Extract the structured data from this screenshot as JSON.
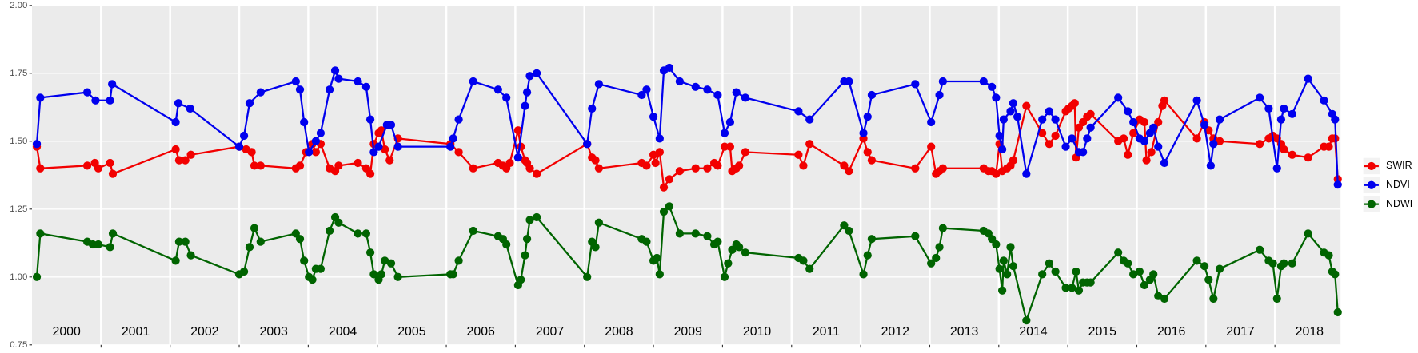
{
  "chart_data": {
    "type": "line",
    "xlim": [
      2000,
      2018.95
    ],
    "ylim": [
      0.75,
      2.0
    ],
    "yticks": [
      {
        "value": 0.75,
        "label": "0.75"
      },
      {
        "value": 1.0,
        "label": "1.00"
      },
      {
        "value": 1.25,
        "label": "1.25"
      },
      {
        "value": 1.5,
        "label": "1.50"
      },
      {
        "value": 1.75,
        "label": "1.75"
      },
      {
        "value": 2.0,
        "label": "2.00"
      }
    ],
    "xticks": [
      {
        "value": 2000.5,
        "label": "2000"
      },
      {
        "value": 2001.5,
        "label": "2001"
      },
      {
        "value": 2002.5,
        "label": "2002"
      },
      {
        "value": 2003.5,
        "label": "2003"
      },
      {
        "value": 2004.5,
        "label": "2004"
      },
      {
        "value": 2005.5,
        "label": "2005"
      },
      {
        "value": 2006.5,
        "label": "2006"
      },
      {
        "value": 2007.5,
        "label": "2007"
      },
      {
        "value": 2008.5,
        "label": "2008"
      },
      {
        "value": 2009.5,
        "label": "2009"
      },
      {
        "value": 2010.5,
        "label": "2010"
      },
      {
        "value": 2011.5,
        "label": "2011"
      },
      {
        "value": 2012.5,
        "label": "2012"
      },
      {
        "value": 2013.5,
        "label": "2013"
      },
      {
        "value": 2014.5,
        "label": "2014"
      },
      {
        "value": 2015.5,
        "label": "2015"
      },
      {
        "value": 2016.5,
        "label": "2016"
      },
      {
        "value": 2017.5,
        "label": "2017"
      },
      {
        "value": 2018.5,
        "label": "2018"
      }
    ],
    "xgrid": [
      2001,
      2002,
      2003,
      2004,
      2005,
      2006,
      2007,
      2008,
      2009,
      2010,
      2011,
      2012,
      2013,
      2014,
      2015,
      2016,
      2017,
      2018
    ],
    "grid": true,
    "legend": "right",
    "series": [
      {
        "name": "SWIR",
        "color": "#f20000",
        "x": [
          2000.07,
          2000.12,
          2000.8,
          2000.91,
          2000.96,
          2001.13,
          2001.17,
          2002.08,
          2002.13,
          2002.22,
          2002.3,
          2003.0,
          2003.1,
          2003.18,
          2003.22,
          2003.31,
          2003.82,
          2003.88,
          2003.97,
          2004.06,
          2004.11,
          2004.18,
          2004.31,
          2004.39,
          2004.44,
          2004.72,
          2004.84,
          2004.9,
          2004.95,
          2005.02,
          2005.06,
          2005.11,
          2005.18,
          2005.3,
          2006.06,
          2006.18,
          2006.39,
          2006.75,
          2006.82,
          2006.87,
          2006.92,
          2007.04,
          2007.08,
          2007.14,
          2007.17,
          2007.21,
          2007.31,
          2008.04,
          2008.11,
          2008.16,
          2008.21,
          2008.83,
          2008.9,
          2009.0,
          2009.03,
          2009.09,
          2009.15,
          2009.23,
          2009.38,
          2009.61,
          2009.78,
          2009.88,
          2009.93,
          2010.03,
          2010.11,
          2010.14,
          2010.2,
          2010.24,
          2010.33,
          2011.1,
          2011.17,
          2011.26,
          2011.76,
          2011.83,
          2012.04,
          2012.1,
          2012.16,
          2012.79,
          2013.02,
          2013.09,
          2013.14,
          2013.19,
          2013.78,
          2013.85,
          2013.9,
          2013.96,
          2014.01,
          2014.05,
          2014.12,
          2014.17,
          2014.21,
          2014.4,
          2014.63,
          2014.73,
          2014.82,
          2014.97,
          2015.01,
          2015.06,
          2015.1,
          2015.12,
          2015.16,
          2015.22,
          2015.28,
          2015.33,
          2015.73,
          2015.81,
          2015.87,
          2015.95,
          2016.04,
          2016.11,
          2016.14,
          2016.21,
          2016.31,
          2016.37,
          2016.4,
          2016.87,
          2016.98,
          2017.04,
          2017.11,
          2017.2,
          2017.78,
          2017.91,
          2017.97,
          2018.03,
          2018.09,
          2018.13,
          2018.25,
          2018.48,
          2018.71,
          2018.78,
          2018.83,
          2018.87,
          2018.91
        ],
        "values": [
          1.48,
          1.4,
          1.41,
          1.42,
          1.4,
          1.42,
          1.38,
          1.47,
          1.43,
          1.43,
          1.45,
          1.48,
          1.47,
          1.46,
          1.41,
          1.41,
          1.4,
          1.41,
          1.46,
          1.49,
          1.46,
          1.49,
          1.4,
          1.39,
          1.41,
          1.42,
          1.4,
          1.38,
          1.49,
          1.53,
          1.54,
          1.47,
          1.43,
          1.51,
          1.49,
          1.46,
          1.4,
          1.42,
          1.41,
          1.4,
          1.42,
          1.54,
          1.48,
          1.43,
          1.42,
          1.4,
          1.38,
          1.49,
          1.44,
          1.43,
          1.4,
          1.42,
          1.41,
          1.45,
          1.42,
          1.46,
          1.33,
          1.36,
          1.39,
          1.4,
          1.4,
          1.42,
          1.41,
          1.48,
          1.48,
          1.39,
          1.4,
          1.41,
          1.46,
          1.45,
          1.41,
          1.49,
          1.41,
          1.39,
          1.51,
          1.46,
          1.43,
          1.4,
          1.48,
          1.38,
          1.39,
          1.4,
          1.4,
          1.39,
          1.39,
          1.38,
          1.49,
          1.39,
          1.4,
          1.41,
          1.43,
          1.63,
          1.53,
          1.49,
          1.52,
          1.61,
          1.62,
          1.63,
          1.64,
          1.44,
          1.55,
          1.57,
          1.59,
          1.6,
          1.5,
          1.51,
          1.45,
          1.53,
          1.58,
          1.57,
          1.43,
          1.46,
          1.57,
          1.63,
          1.65,
          1.51,
          1.57,
          1.54,
          1.51,
          1.5,
          1.49,
          1.51,
          1.52,
          1.51,
          1.49,
          1.47,
          1.45,
          1.44,
          1.48,
          1.48,
          1.51,
          1.51,
          1.36
        ]
      },
      {
        "name": "NDVI",
        "color": "#0000ee",
        "x": [
          2000.07,
          2000.12,
          2000.8,
          2000.92,
          2001.13,
          2001.16,
          2002.08,
          2002.12,
          2002.29,
          2003.0,
          2003.07,
          2003.15,
          2003.31,
          2003.82,
          2003.88,
          2003.94,
          2004.01,
          2004.11,
          2004.18,
          2004.31,
          2004.39,
          2004.44,
          2004.72,
          2004.84,
          2004.9,
          2004.95,
          2005.02,
          2005.14,
          2005.2,
          2005.3,
          2006.06,
          2006.1,
          2006.18,
          2006.39,
          2006.75,
          2006.87,
          2007.04,
          2007.14,
          2007.17,
          2007.21,
          2007.31,
          2008.04,
          2008.11,
          2008.21,
          2008.83,
          2008.9,
          2009.0,
          2009.09,
          2009.15,
          2009.23,
          2009.38,
          2009.61,
          2009.78,
          2009.93,
          2010.03,
          2010.11,
          2010.2,
          2010.33,
          2011.1,
          2011.26,
          2011.76,
          2011.83,
          2012.04,
          2012.1,
          2012.16,
          2012.79,
          2013.02,
          2013.14,
          2013.19,
          2013.78,
          2013.9,
          2013.96,
          2014.01,
          2014.05,
          2014.07,
          2014.17,
          2014.21,
          2014.27,
          2014.4,
          2014.63,
          2014.73,
          2014.82,
          2014.97,
          2015.06,
          2015.16,
          2015.22,
          2015.28,
          2015.33,
          2015.73,
          2015.87,
          2015.95,
          2016.04,
          2016.11,
          2016.19,
          2016.24,
          2016.31,
          2016.4,
          2016.87,
          2016.98,
          2017.07,
          2017.11,
          2017.2,
          2017.78,
          2017.91,
          2018.03,
          2018.09,
          2018.13,
          2018.25,
          2018.48,
          2018.71,
          2018.83,
          2018.87,
          2018.91
        ],
        "values": [
          1.49,
          1.66,
          1.68,
          1.65,
          1.65,
          1.71,
          1.57,
          1.64,
          1.62,
          1.48,
          1.52,
          1.64,
          1.68,
          1.72,
          1.69,
          1.57,
          1.46,
          1.5,
          1.53,
          1.69,
          1.76,
          1.73,
          1.72,
          1.7,
          1.58,
          1.46,
          1.48,
          1.56,
          1.56,
          1.48,
          1.48,
          1.51,
          1.58,
          1.72,
          1.69,
          1.66,
          1.44,
          1.63,
          1.68,
          1.74,
          1.75,
          1.49,
          1.62,
          1.71,
          1.67,
          1.69,
          1.59,
          1.51,
          1.76,
          1.77,
          1.72,
          1.7,
          1.69,
          1.67,
          1.53,
          1.57,
          1.68,
          1.66,
          1.61,
          1.58,
          1.72,
          1.72,
          1.53,
          1.59,
          1.67,
          1.71,
          1.57,
          1.67,
          1.72,
          1.72,
          1.7,
          1.66,
          1.52,
          1.47,
          1.58,
          1.61,
          1.64,
          1.59,
          1.38,
          1.58,
          1.61,
          1.58,
          1.48,
          1.51,
          1.46,
          1.46,
          1.51,
          1.55,
          1.66,
          1.61,
          1.57,
          1.51,
          1.5,
          1.53,
          1.55,
          1.48,
          1.42,
          1.65,
          1.56,
          1.41,
          1.49,
          1.58,
          1.66,
          1.62,
          1.4,
          1.58,
          1.62,
          1.6,
          1.73,
          1.65,
          1.6,
          1.58,
          1.34
        ]
      },
      {
        "name": "NDWI",
        "color": "#006400",
        "x": [
          2000.07,
          2000.12,
          2000.8,
          2000.88,
          2000.96,
          2001.13,
          2001.17,
          2002.08,
          2002.13,
          2002.22,
          2002.3,
          2003.0,
          2003.07,
          2003.15,
          2003.22,
          2003.31,
          2003.82,
          2003.88,
          2003.94,
          2004.01,
          2004.06,
          2004.11,
          2004.18,
          2004.31,
          2004.39,
          2004.44,
          2004.72,
          2004.84,
          2004.9,
          2004.95,
          2005.02,
          2005.06,
          2005.11,
          2005.2,
          2005.3,
          2006.06,
          2006.1,
          2006.18,
          2006.39,
          2006.75,
          2006.82,
          2006.87,
          2007.04,
          2007.08,
          2007.14,
          2007.17,
          2007.21,
          2007.31,
          2008.04,
          2008.11,
          2008.16,
          2008.21,
          2008.83,
          2008.9,
          2009.0,
          2009.05,
          2009.09,
          2009.15,
          2009.23,
          2009.38,
          2009.61,
          2009.78,
          2009.88,
          2009.93,
          2010.03,
          2010.08,
          2010.14,
          2010.2,
          2010.24,
          2010.33,
          2011.1,
          2011.17,
          2011.26,
          2011.76,
          2011.83,
          2012.04,
          2012.1,
          2012.16,
          2012.79,
          2013.02,
          2013.09,
          2013.14,
          2013.19,
          2013.78,
          2013.85,
          2013.9,
          2013.96,
          2014.01,
          2014.05,
          2014.07,
          2014.12,
          2014.17,
          2014.21,
          2014.4,
          2014.63,
          2014.73,
          2014.82,
          2014.97,
          2015.06,
          2015.12,
          2015.16,
          2015.22,
          2015.28,
          2015.33,
          2015.73,
          2015.81,
          2015.87,
          2015.95,
          2016.04,
          2016.11,
          2016.19,
          2016.24,
          2016.31,
          2016.4,
          2016.87,
          2016.98,
          2017.04,
          2017.11,
          2017.2,
          2017.78,
          2017.91,
          2017.97,
          2018.03,
          2018.09,
          2018.13,
          2018.25,
          2018.48,
          2018.71,
          2018.78,
          2018.83,
          2018.87,
          2018.91
        ],
        "values": [
          1.0,
          1.16,
          1.13,
          1.12,
          1.12,
          1.11,
          1.16,
          1.06,
          1.13,
          1.13,
          1.08,
          1.01,
          1.02,
          1.11,
          1.18,
          1.13,
          1.16,
          1.14,
          1.06,
          1.0,
          0.99,
          1.03,
          1.03,
          1.17,
          1.22,
          1.2,
          1.16,
          1.16,
          1.09,
          1.01,
          0.99,
          1.01,
          1.06,
          1.05,
          1.0,
          1.01,
          1.01,
          1.06,
          1.17,
          1.15,
          1.14,
          1.12,
          0.97,
          0.99,
          1.08,
          1.14,
          1.21,
          1.22,
          1.0,
          1.13,
          1.11,
          1.2,
          1.14,
          1.13,
          1.06,
          1.07,
          1.01,
          1.24,
          1.26,
          1.16,
          1.16,
          1.15,
          1.12,
          1.13,
          1.0,
          1.05,
          1.1,
          1.12,
          1.11,
          1.09,
          1.07,
          1.06,
          1.03,
          1.19,
          1.17,
          1.01,
          1.08,
          1.14,
          1.15,
          1.05,
          1.07,
          1.11,
          1.18,
          1.17,
          1.16,
          1.14,
          1.12,
          1.03,
          0.95,
          1.06,
          1.01,
          1.11,
          1.04,
          0.84,
          1.01,
          1.05,
          1.02,
          0.96,
          0.96,
          1.02,
          0.95,
          0.98,
          0.98,
          0.98,
          1.09,
          1.06,
          1.05,
          1.01,
          1.02,
          0.97,
          0.99,
          1.01,
          0.93,
          0.92,
          1.06,
          1.04,
          0.99,
          0.92,
          1.03,
          1.1,
          1.06,
          1.05,
          0.92,
          1.04,
          1.05,
          1.05,
          1.16,
          1.09,
          1.08,
          1.02,
          1.01,
          0.87
        ]
      }
    ]
  }
}
